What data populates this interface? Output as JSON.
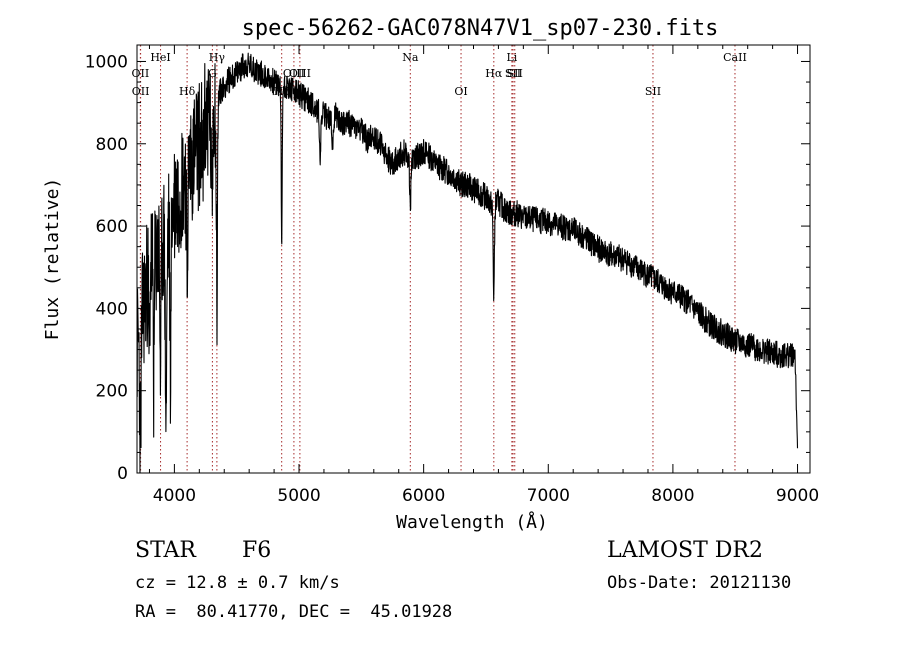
{
  "chart_data": {
    "type": "line",
    "title": "spec-56262-GAC078N47V1_sp07-230.fits",
    "xlabel": "Wavelength (Å)",
    "ylabel": "Flux (relative)",
    "xlim": [
      3700,
      9100
    ],
    "ylim": [
      0,
      1040
    ],
    "xticks": [
      4000,
      5000,
      6000,
      7000,
      8000,
      9000
    ],
    "yticks": [
      0,
      200,
      400,
      600,
      800,
      1000
    ],
    "grid": false,
    "line_color": "#000000",
    "marker_color": "#a52a2a",
    "spectral_lines": [
      {
        "label": "OII",
        "wavelength": 3727,
        "row": 2
      },
      {
        "label": "OII",
        "wavelength": 3729,
        "row": 3
      },
      {
        "label": "HeI",
        "wavelength": 3889,
        "row": 1
      },
      {
        "label": "Hδ",
        "wavelength": 4102,
        "row": 3
      },
      {
        "label": "Hγ",
        "wavelength": 4341,
        "row": 1
      },
      {
        "label": "G",
        "wavelength": 4305,
        "row": 2
      },
      {
        "label": "Hβ",
        "wavelength": 4861,
        "row": 3
      },
      {
        "label": "OIII",
        "wavelength": 4959,
        "row": 2
      },
      {
        "label": "OIII",
        "wavelength": 5007,
        "row": 2
      },
      {
        "label": "Na",
        "wavelength": 5893,
        "row": 1
      },
      {
        "label": "OI",
        "wavelength": 6300,
        "row": 3
      },
      {
        "label": "Hα",
        "wavelength": 6563,
        "row": 2
      },
      {
        "label": "Li",
        "wavelength": 6708,
        "row": 1
      },
      {
        "label": "SII",
        "wavelength": 6717,
        "row": 2
      },
      {
        "label": "SII",
        "wavelength": 6731,
        "row": 2
      },
      {
        "label": "SII",
        "wavelength": 7840,
        "row": 3
      },
      {
        "label": "CaII",
        "wavelength": 8498,
        "row": 1
      }
    ],
    "continuum": {
      "x": [
        3700,
        3760,
        3800,
        3850,
        3900,
        3950,
        4000,
        4050,
        4100,
        4150,
        4200,
        4250,
        4300,
        4350,
        4400,
        4450,
        4500,
        4550,
        4600,
        4650,
        4700,
        4750,
        4800,
        4850,
        4900,
        4950,
        5000,
        5050,
        5100,
        5150,
        5200,
        5250,
        5300,
        5350,
        5400,
        5450,
        5500,
        5550,
        5600,
        5650,
        5700,
        5750,
        5800,
        5850,
        5900,
        5950,
        6000,
        6050,
        6100,
        6150,
        6200,
        6250,
        6300,
        6350,
        6400,
        6450,
        6500,
        6550,
        6600,
        6650,
        6700,
        6750,
        6800,
        6900,
        7000,
        7100,
        7200,
        7300,
        7400,
        7500,
        7600,
        7700,
        7800,
        7900,
        8000,
        8100,
        8200,
        8300,
        8400,
        8500,
        8600,
        8700,
        8800,
        8900,
        8980,
        9000
      ],
      "y": [
        300,
        420,
        500,
        520,
        560,
        600,
        660,
        700,
        740,
        770,
        800,
        850,
        900,
        920,
        940,
        960,
        970,
        990,
        990,
        980,
        970,
        960,
        950,
        940,
        940,
        930,
        920,
        910,
        900,
        880,
        870,
        860,
        870,
        850,
        850,
        840,
        830,
        810,
        820,
        800,
        770,
        750,
        770,
        780,
        760,
        770,
        780,
        770,
        750,
        740,
        730,
        720,
        700,
        700,
        690,
        680,
        670,
        650,
        660,
        640,
        630,
        630,
        620,
        615,
        610,
        600,
        590,
        570,
        545,
        530,
        520,
        500,
        480,
        460,
        440,
        420,
        390,
        360,
        340,
        320,
        310,
        300,
        290,
        285,
        290,
        60
      ]
    },
    "absorption_features": [
      {
        "center": 3727,
        "depth": 250,
        "width": 6
      },
      {
        "center": 3798,
        "depth": 250,
        "width": 4
      },
      {
        "center": 3835,
        "depth": 300,
        "width": 4
      },
      {
        "center": 3889,
        "depth": 300,
        "width": 5
      },
      {
        "center": 3933,
        "depth": 450,
        "width": 6
      },
      {
        "center": 3968,
        "depth": 350,
        "width": 5
      },
      {
        "center": 4102,
        "depth": 260,
        "width": 5
      },
      {
        "center": 4226,
        "depth": 120,
        "width": 4
      },
      {
        "center": 4300,
        "depth": 250,
        "width": 6
      },
      {
        "center": 4341,
        "depth": 480,
        "width": 5
      },
      {
        "center": 4861,
        "depth": 390,
        "width": 4
      },
      {
        "center": 5170,
        "depth": 120,
        "width": 5
      },
      {
        "center": 5270,
        "depth": 80,
        "width": 5
      },
      {
        "center": 5893,
        "depth": 110,
        "width": 5
      },
      {
        "center": 6563,
        "depth": 220,
        "width": 5
      }
    ],
    "noise_amplitude": 32,
    "blue_noise_amplitude": 160
  },
  "info": {
    "object_class": "STAR",
    "subclass": "F6",
    "survey": "LAMOST DR2",
    "redshift_text": "cz = 12.8 ± 0.7 km/s",
    "obs_date_text": "Obs-Date: 20121130",
    "coords_text": "RA =  80.41770, DEC =  45.01928"
  }
}
